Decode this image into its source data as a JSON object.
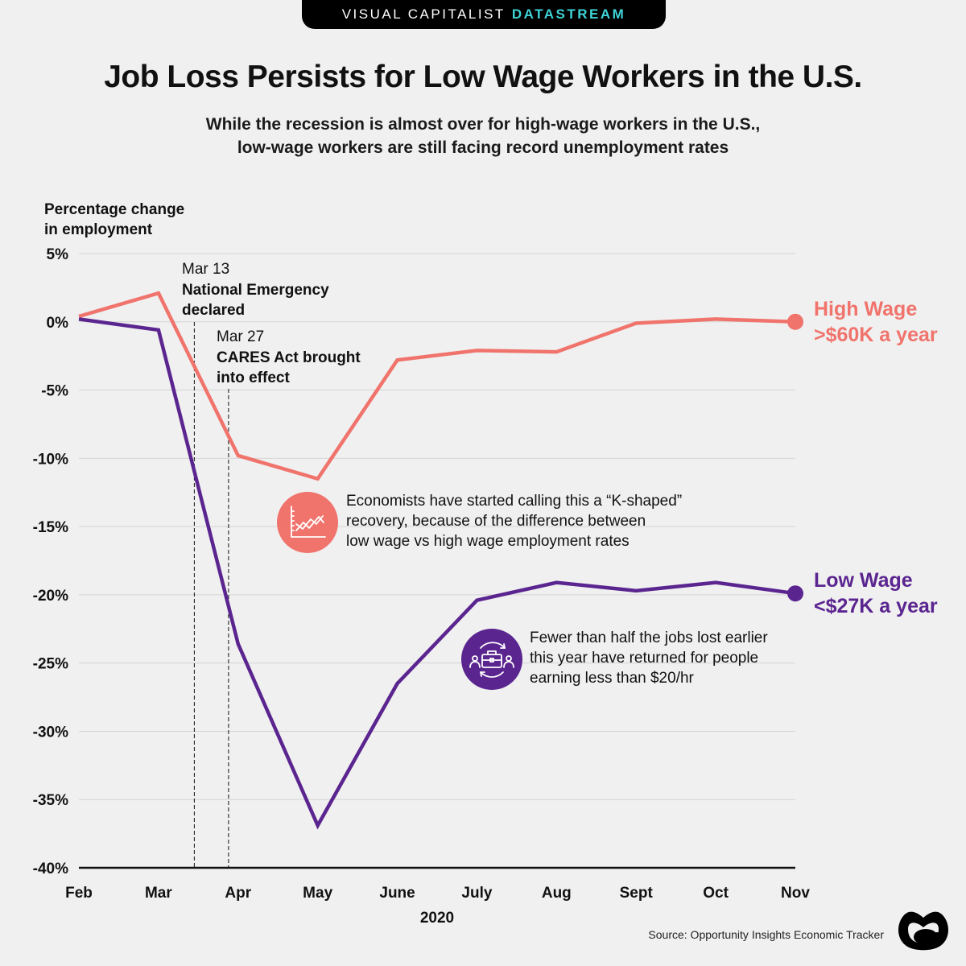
{
  "header": {
    "brand": "VISUAL CAPITALIST",
    "brand_accent": "DATASTREAM",
    "title": "Job Loss Persists for Low Wage Workers in the U.S.",
    "subtitle_line1": "While the recession is almost over for high-wage workers in the U.S.,",
    "subtitle_line2": "low-wage workers are still facing record unemployment rates"
  },
  "colors": {
    "high_wage": "#f0736c",
    "low_wage": "#5b2590",
    "brand_accent": "#3fd3d8",
    "background": "#f0f0f0"
  },
  "chart_data": {
    "type": "line",
    "title": "Job Loss Persists for Low Wage Workers in the U.S.",
    "ylabel_line1": "Percentage change",
    "ylabel_line2": "in employment",
    "xlabel": "2020",
    "x": [
      "Feb",
      "Mar",
      "Apr",
      "May",
      "June",
      "July",
      "Aug",
      "Sept",
      "Oct",
      "Nov"
    ],
    "ylim": [
      -40,
      5
    ],
    "yticks": [
      5,
      0,
      -5,
      -10,
      -15,
      -20,
      -25,
      -30,
      -35,
      -40
    ],
    "ytick_labels": [
      "5%",
      "0%",
      "-5%",
      "-10%",
      "-15%",
      "-20%",
      "-25%",
      "-30%",
      "-35%",
      "-40%"
    ],
    "grid": true,
    "series": [
      {
        "name": "High Wage",
        "label_line1": "High Wage",
        "label_line2": ">$60K a year",
        "color": "#f0736c",
        "values": [
          0.4,
          2.1,
          -9.8,
          -11.5,
          -2.8,
          -2.1,
          -2.2,
          -0.1,
          0.2,
          0.0
        ]
      },
      {
        "name": "Low Wage",
        "label_line1": "Low Wage",
        "label_line2": "<$27K a year",
        "color": "#5b2590",
        "values": [
          0.2,
          -0.6,
          -23.6,
          -36.9,
          -26.5,
          -20.4,
          -19.1,
          -19.7,
          -19.1,
          -19.9
        ]
      }
    ],
    "annotations": [
      {
        "date": "Mar 13",
        "x_month_offset": 1.45,
        "line1": "National Emergency",
        "line2": "declared"
      },
      {
        "date": "Mar 27",
        "x_month_offset": 1.88,
        "line1": "CARES Act brought",
        "line2": "into effect"
      }
    ]
  },
  "notes": [
    {
      "icon": "chart-trend-icon",
      "lines": [
        "Economists have started calling this a “K-shaped”",
        "recovery, because of the difference between",
        "low wage vs high wage employment rates"
      ]
    },
    {
      "icon": "briefcase-people-icon",
      "lines": [
        "Fewer than half the jobs lost earlier",
        "this year have returned for people",
        "earning less than $20/hr"
      ]
    }
  ],
  "footer": {
    "source": "Source: Opportunity Insights Economic Tracker"
  }
}
